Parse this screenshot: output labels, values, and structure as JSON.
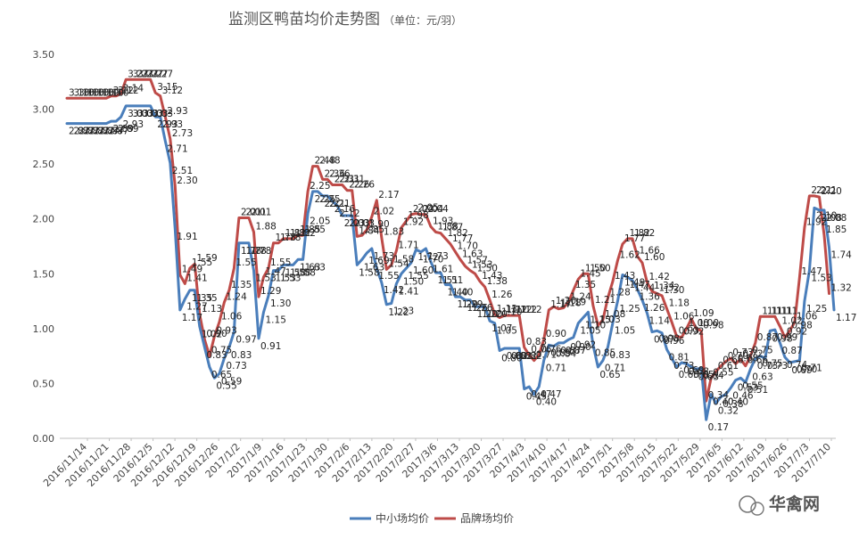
{
  "chart_data": {
    "type": "line",
    "title": "监测区鸭苗均价走势图",
    "unit": "（单位：元/羽）",
    "xlabel": "",
    "ylabel": "",
    "ylim": [
      0,
      3.5
    ],
    "yticks": [
      "0.00",
      "0.50",
      "1.00",
      "1.50",
      "2.00",
      "2.50",
      "3.00",
      "3.50"
    ],
    "grid": false,
    "legend_position": "bottom",
    "x_tick_labels": [
      "2016/11/14",
      "2016/11/21",
      "2016/11/28",
      "2016/12/5",
      "2016/12/12",
      "2016/12/19",
      "2016/12/26",
      "2017/1/2",
      "2017/1/9",
      "2017/1/16",
      "2017/1/23",
      "2017/1/30",
      "2017/2/6",
      "2017/2/13",
      "2017/2/20",
      "2017/2/27",
      "2017/3/6",
      "2017/3/13",
      "2017/3/20",
      "2017/3/27",
      "2017/4/3",
      "2017/4/10",
      "2017/4/17",
      "2017/4/24",
      "2017/5/1",
      "2017/5/8",
      "2017/5/15",
      "2017/5/22",
      "2017/5/29",
      "2017/6/5",
      "2017/6/12",
      "2017/6/19",
      "2017/6/26",
      "2017/7/3",
      "2017/7/10"
    ],
    "series": [
      {
        "name": "中小场均价",
        "color": "#4a7ebb",
        "values": [
          2.87,
          2.87,
          2.87,
          2.87,
          2.87,
          2.87,
          2.87,
          2.87,
          2.87,
          2.89,
          2.89,
          2.93,
          3.03,
          3.03,
          3.03,
          3.03,
          3.03,
          3.03,
          2.93,
          2.93,
          2.71,
          2.51,
          1.91,
          1.17,
          1.27,
          1.35,
          1.35,
          1.02,
          0.83,
          0.65,
          0.55,
          0.59,
          0.73,
          0.83,
          0.97,
          1.78,
          1.78,
          1.78,
          1.53,
          0.91,
          1.15,
          1.3,
          1.53,
          1.53,
          1.58,
          1.58,
          1.58,
          1.63,
          1.63,
          2.05,
          2.25,
          2.25,
          2.21,
          2.21,
          2.16,
          2.12,
          2.03,
          2.03,
          2.03,
          1.58,
          1.63,
          1.69,
          1.73,
          1.55,
          1.42,
          1.22,
          1.23,
          1.41,
          1.5,
          1.55,
          1.6,
          1.72,
          1.7,
          1.73,
          1.61,
          1.51,
          1.51,
          1.4,
          1.4,
          1.29,
          1.29,
          1.26,
          1.26,
          1.2,
          1.2,
          1.2,
          1.07,
          1.05,
          0.8,
          0.82,
          0.82,
          0.82,
          0.82,
          0.45,
          0.47,
          0.4,
          0.47,
          0.71,
          0.85,
          0.84,
          0.87,
          0.87,
          0.9,
          0.92,
          1.05,
          1.1,
          1.15,
          0.85,
          0.65,
          0.71,
          0.83,
          1.05,
          1.25,
          1.49,
          1.47,
          1.44,
          1.36,
          1.26,
          1.14,
          0.97,
          0.98,
          0.96,
          0.81,
          0.73,
          0.65,
          0.69,
          0.68,
          0.65,
          0.63,
          0.64,
          0.17,
          0.4,
          0.32,
          0.38,
          0.4,
          0.46,
          0.53,
          0.55,
          0.51,
          0.63,
          0.73,
          0.75,
          0.73,
          0.98,
          0.99,
          0.87,
          0.74,
          0.69,
          0.7,
          0.71,
          1.25,
          1.53,
          2.1,
          2.08,
          2.08,
          1.74,
          1.17
        ]
      },
      {
        "name": "品牌场均价",
        "color": "#be4b48",
        "values": [
          3.1,
          3.1,
          3.1,
          3.1,
          3.1,
          3.1,
          3.1,
          3.1,
          3.1,
          3.12,
          3.12,
          3.14,
          3.27,
          3.27,
          3.27,
          3.27,
          3.27,
          3.27,
          3.15,
          3.12,
          2.93,
          2.73,
          2.3,
          1.49,
          1.41,
          1.55,
          1.59,
          1.13,
          0.9,
          0.75,
          0.93,
          1.06,
          1.24,
          1.35,
          1.55,
          2.01,
          2.01,
          2.01,
          1.88,
          1.29,
          1.47,
          1.55,
          1.78,
          1.78,
          1.82,
          1.82,
          1.82,
          1.85,
          1.85,
          2.25,
          2.48,
          2.48,
          2.36,
          2.36,
          2.31,
          2.31,
          2.31,
          2.26,
          2.26,
          1.84,
          1.85,
          1.9,
          2.02,
          2.17,
          1.83,
          1.54,
          1.58,
          1.71,
          1.92,
          1.98,
          2.04,
          2.05,
          2.04,
          2.04,
          1.93,
          1.88,
          1.87,
          1.82,
          1.77,
          1.7,
          1.63,
          1.57,
          1.53,
          1.5,
          1.43,
          1.38,
          1.26,
          1.13,
          1.1,
          1.12,
          1.12,
          1.12,
          1.12,
          0.83,
          0.76,
          0.71,
          0.76,
          0.9,
          1.17,
          1.2,
          1.18,
          1.19,
          1.24,
          1.35,
          1.45,
          1.5,
          1.5,
          1.21,
          1.03,
          1.08,
          1.28,
          1.43,
          1.62,
          1.77,
          1.82,
          1.82,
          1.66,
          1.6,
          1.42,
          1.34,
          1.32,
          1.3,
          1.18,
          1.06,
          0.93,
          0.92,
          1.0,
          1.09,
          1.0,
          0.98,
          0.34,
          0.55,
          0.61,
          0.66,
          0.7,
          0.73,
          0.68,
          0.72,
          0.66,
          0.75,
          0.87,
          1.11,
          1.11,
          1.11,
          1.11,
          1.02,
          0.92,
          0.98,
          1.06,
          1.47,
          1.92,
          2.21,
          2.21,
          2.2,
          1.85,
          1.32
        ]
      }
    ]
  },
  "watermark": {
    "brand": "华禽网"
  }
}
